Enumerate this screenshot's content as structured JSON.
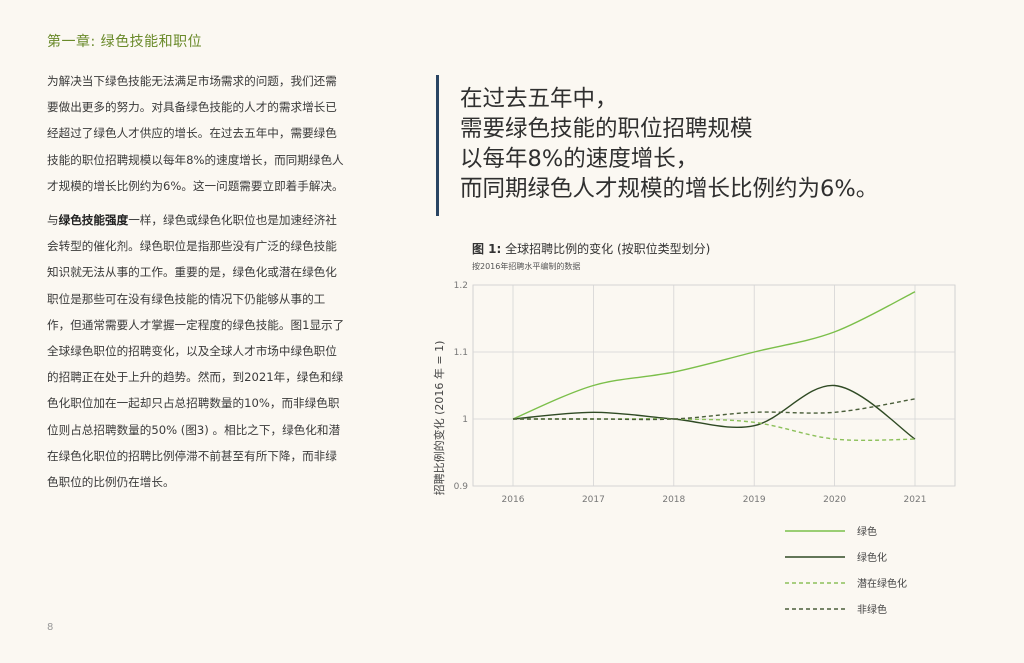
{
  "chapter": "第一章: 绿色技能和职位",
  "paragraph1": "为解决当下绿色技能无法满足市场需求的问题，我们还需要做出更多的努力。对具备绿色技能的人才的需求增长已经超过了绿色人才供应的增长。在过去五年中，需要绿色技能的职位招聘规模以每年8%的速度增长，而同期绿色人才规模的增长比例约为6%。这一问题需要立即着手解决。",
  "paragraph2": {
    "lead": "与",
    "bold": "绿色技能强度",
    "rest": "一样，绿色或绿色化职位也是加速经济社会转型的催化剂。绿色职位是指那些没有广泛的绿色技能知识就无法从事的工作。重要的是，绿色化或潜在绿色化职位是那些可在没有绿色技能的情况下仍能够从事的工作，但通常需要人才掌握一定程度的绿色技能。图1显示了全球绿色职位的招聘变化，以及全球人才市场中绿色职位的招聘正在处于上升的趋势。然而，到2021年，绿色和绿色化职位加在一起却只占总招聘数量的10%，而非绿色职位则占总招聘数量的50% (图3) 。相比之下，绿色化和潜在绿色化职位的招聘比例停滞不前甚至有所下降，而非绿色职位的比例仍在增长。"
  },
  "quote": "在过去五年中，\n需要绿色技能的职位招聘规模\n以每年8%的速度增长，\n而同期绿色人才规模的增长比例约为6%。",
  "figure": {
    "label": "图 1:",
    "title": " 全球招聘比例的变化 (按职位类型划分)",
    "subtitle": "按2016年招聘水平编制的数据"
  },
  "page_number": "8",
  "colors": {
    "light_green": "#7bbf4a",
    "dark_green": "#2f4a24",
    "dashed_light": "#8cc05a",
    "dashed_dark": "#4a5e3a",
    "quote_bar": "#2a4563",
    "chapter": "#6a8a2a"
  },
  "chart_data": {
    "type": "line",
    "x": [
      2016,
      2017,
      2018,
      2019,
      2020,
      2021
    ],
    "ylabel": "招聘比例的变化 (2016 年 = 1)",
    "ylim": [
      0.9,
      1.2
    ],
    "yticks": [
      "1.2",
      "1.1",
      "1",
      "0.9"
    ],
    "ytick_values": [
      1.2,
      1.1,
      1.0,
      0.9
    ],
    "grid": true,
    "legend_position": "bottom-right",
    "series": [
      {
        "name": "绿色",
        "style": "solid",
        "color": "#7bbf4a",
        "values": [
          1.0,
          1.05,
          1.07,
          1.1,
          1.13,
          1.19
        ]
      },
      {
        "name": "绿色化",
        "style": "solid",
        "color": "#2f4a24",
        "values": [
          1.0,
          1.01,
          1.0,
          0.99,
          1.05,
          0.97
        ]
      },
      {
        "name": "潜在绿色化",
        "style": "dashed",
        "color": "#8cc05a",
        "values": [
          1.0,
          1.0,
          1.0,
          0.995,
          0.97,
          0.97
        ]
      },
      {
        "name": "非绿色",
        "style": "dashed",
        "color": "#4a5e3a",
        "values": [
          1.0,
          1.0,
          1.0,
          1.01,
          1.01,
          1.03
        ]
      }
    ]
  }
}
